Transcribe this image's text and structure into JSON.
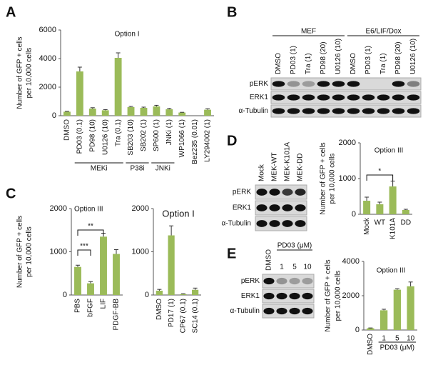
{
  "panel_labels": [
    "A",
    "B",
    "C",
    "D",
    "E"
  ],
  "chart_data": [
    {
      "type": "bar",
      "title": "Option I",
      "ylabel": [
        "Number of GFP + cells",
        "per 10,000 cells"
      ],
      "categories": [
        "DMSO",
        "PD03 (0.1)",
        "PD98 (10)",
        "U0126 (10)",
        "Tra (0.1)",
        "SB203 (10)",
        "SB202 (1)",
        "SP600 (1)",
        "JNKi (1)",
        "WP1066 (1)",
        "Bez235 (0.01)",
        "LY294002 (1)"
      ],
      "values": [
        280,
        3100,
        500,
        380,
        4050,
        600,
        550,
        650,
        450,
        220,
        0,
        420
      ],
      "errors": [
        30,
        300,
        60,
        50,
        350,
        50,
        50,
        80,
        60,
        20,
        null,
        70
      ],
      "groups": [
        "MEKi",
        "P38i",
        "JNKi"
      ],
      "color": "#9bbb59",
      "ylim": [
        0,
        6000
      ],
      "yticks": [
        0,
        2000,
        4000,
        6000
      ]
    },
    {
      "type": "bar",
      "title": "Option III",
      "ylabel": [
        "Number of GFP + cells",
        "per 10,000 cells"
      ],
      "categories": [
        "PBS",
        "bFGF",
        "LIF",
        "PDGF-BB"
      ],
      "values": [
        650,
        270,
        1350,
        950
      ],
      "errors": [
        40,
        40,
        80,
        100
      ],
      "annotations": [
        "***",
        "**"
      ],
      "color": "#9bbb59",
      "ylim": [
        0,
        2000
      ],
      "yticks": [
        0,
        1000,
        2000
      ]
    },
    {
      "type": "bar",
      "title": "Option I",
      "categories": [
        "DMSO",
        "PD17 (1)",
        "CP67 (0.1)",
        "SC14 (0.1)"
      ],
      "values": [
        100,
        1380,
        20,
        120
      ],
      "errors": [
        30,
        220,
        10,
        40
      ],
      "color": "#9bbb59",
      "ylim": [
        0,
        2000
      ],
      "yticks": [
        0,
        1000,
        2000
      ]
    },
    {
      "type": "bar",
      "title": "Option III",
      "ylabel": [
        "Number of GFP + cells",
        "per 10,000 cells"
      ],
      "categories": [
        "Mock",
        "WT",
        "K101A",
        "DD"
      ],
      "values": [
        380,
        280,
        780,
        120
      ],
      "errors": [
        100,
        60,
        150,
        20
      ],
      "annotations": [
        "*"
      ],
      "color": "#9bbb59",
      "ylim": [
        0,
        2000
      ],
      "yticks": [
        0,
        1000,
        2000
      ]
    },
    {
      "type": "bar",
      "title": "Option III",
      "ylabel": [
        "Number of GFP + cells",
        "per 10,000 cells"
      ],
      "categories": [
        "DMSO",
        "1",
        "5",
        "10"
      ],
      "values": [
        100,
        1150,
        2350,
        2550
      ],
      "errors": [
        20,
        60,
        60,
        250
      ],
      "groups": [
        "PD03 (μM)"
      ],
      "color": "#9bbb59",
      "ylim": [
        0,
        4000
      ],
      "yticks": [
        0,
        2000,
        4000
      ]
    }
  ],
  "blots": [
    {
      "groups": [
        "MEF",
        "E6/LIF/Dox"
      ],
      "lanes": [
        "DMSO",
        "PD03 (1)",
        "Tra (1)",
        "PD98 (20)",
        "U0126 (10)",
        "DMSO",
        "PD03 (1)",
        "Tra (1)",
        "PD98 (20)",
        "U0126 (10)"
      ],
      "rows": [
        "pERK",
        "ERK1",
        "α-Tubulin"
      ]
    },
    {
      "lanes": [
        "Mock",
        "MEK-WT",
        "MEK-K101A",
        "MEK-DD"
      ],
      "rows": [
        "pERK",
        "ERK1",
        "α-Tubulin"
      ]
    },
    {
      "groups": [
        "PD03 (μM)"
      ],
      "lanes": [
        "DMSO",
        "1",
        "5",
        "10"
      ],
      "rows": [
        "pERK",
        "ERK1",
        "α-Tubulin"
      ]
    }
  ]
}
